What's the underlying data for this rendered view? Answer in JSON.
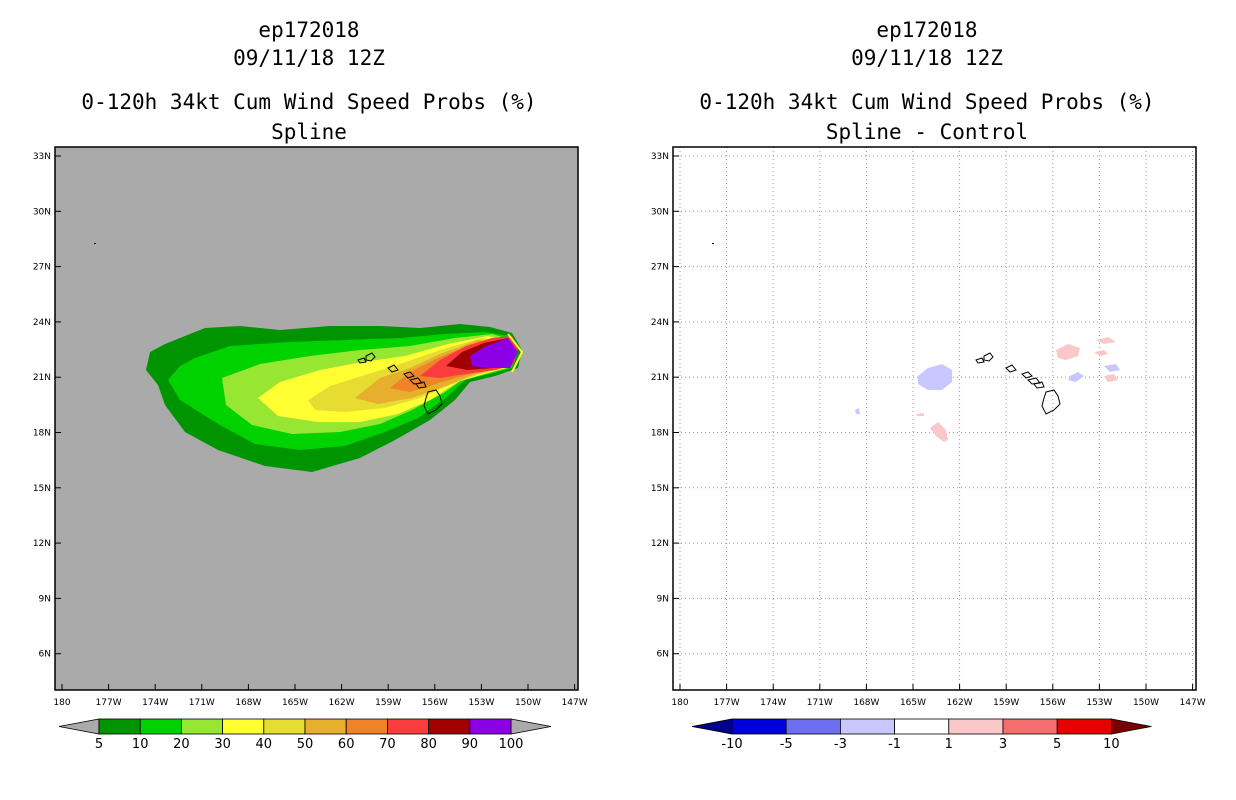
{
  "left_panel": {
    "storm_id": "ep172018",
    "date": "09/11/18 12Z",
    "product": "0-120h 34kt Cum Wind Speed Probs (%)",
    "subtitle": "Spline",
    "background_color": "#aaaaaa",
    "colorbar": {
      "labels": [
        "5",
        "10",
        "20",
        "30",
        "40",
        "50",
        "60",
        "70",
        "80",
        "90",
        "100"
      ],
      "colors": [
        "#009500",
        "#00d200",
        "#96e632",
        "#ffff32",
        "#e6dc32",
        "#e6af2d",
        "#f08228",
        "#fa3c3c",
        "#a00000",
        "#8c00e6"
      ],
      "low_arrow_color": "#aaaaaa",
      "high_arrow_color": "#aaaaaa"
    }
  },
  "right_panel": {
    "storm_id": "ep172018",
    "date": "09/11/18 12Z",
    "product": "0-120h 34kt Cum Wind Speed Probs (%)",
    "subtitle": "Spline - Control",
    "background_color": "#ffffff",
    "colorbar": {
      "labels": [
        "-10",
        "-5",
        "-3",
        "-1",
        "1",
        "3",
        "5",
        "10"
      ],
      "colors": [
        "#0000dc",
        "#6e6ef0",
        "#c8c8ff",
        "#ffffff",
        "#fac8c8",
        "#f56e6e",
        "#e60000"
      ],
      "low_arrow_color": "#00008c",
      "high_arrow_color": "#780000"
    }
  },
  "map_axes": {
    "lon_labels": [
      "180",
      "177W",
      "174W",
      "171W",
      "168W",
      "165W",
      "162W",
      "159W",
      "156W",
      "153W",
      "150W",
      "147W"
    ],
    "lat_labels": [
      "33N",
      "30N",
      "27N",
      "24N",
      "21N",
      "18N",
      "15N",
      "12N",
      "9N",
      "6N"
    ]
  }
}
